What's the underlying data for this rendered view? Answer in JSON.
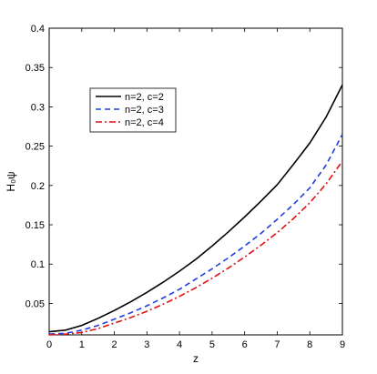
{
  "chart_data": {
    "type": "line",
    "xlabel": "z",
    "ylabel": "H₀ψ",
    "xlim": [
      0,
      9
    ],
    "ylim": [
      0.01,
      0.4
    ],
    "x_ticks": [
      0,
      1,
      2,
      3,
      4,
      5,
      6,
      7,
      8,
      9
    ],
    "y_ticks": [
      0.05,
      0.1,
      0.15,
      0.2,
      0.25,
      0.3,
      0.35,
      0.4
    ],
    "legend_position": "upper-left",
    "grid": false,
    "series": [
      {
        "name": "n=2, c=2",
        "color": "#000000",
        "dash": "solid",
        "x": [
          0,
          0.5,
          1,
          1.5,
          2,
          2.5,
          3,
          3.5,
          4,
          4.5,
          5,
          5.5,
          6,
          6.5,
          7,
          7.5,
          8,
          8.5,
          9
        ],
        "y": [
          0.014,
          0.016,
          0.022,
          0.031,
          0.041,
          0.052,
          0.064,
          0.077,
          0.091,
          0.106,
          0.123,
          0.141,
          0.16,
          0.18,
          0.201,
          0.227,
          0.254,
          0.287,
          0.328
        ]
      },
      {
        "name": "n=2, c=3",
        "color": "#1f3fe0",
        "dash": "dashed",
        "x": [
          0,
          0.5,
          1,
          1.5,
          2,
          2.5,
          3,
          3.5,
          4,
          4.5,
          5,
          5.5,
          6,
          6.5,
          7,
          7.5,
          8,
          8.5,
          9
        ],
        "y": [
          0.011,
          0.012,
          0.016,
          0.022,
          0.03,
          0.038,
          0.047,
          0.057,
          0.068,
          0.081,
          0.094,
          0.108,
          0.123,
          0.139,
          0.157,
          0.176,
          0.197,
          0.226,
          0.265
        ]
      },
      {
        "name": "n=2, c=4",
        "color": "#e01010",
        "dash": "dashdot",
        "x": [
          0,
          0.5,
          1,
          1.5,
          2,
          2.5,
          3,
          3.5,
          4,
          4.5,
          5,
          5.5,
          6,
          6.5,
          7,
          7.5,
          8,
          8.5,
          9
        ],
        "y": [
          0.01,
          0.011,
          0.013,
          0.018,
          0.025,
          0.032,
          0.04,
          0.049,
          0.059,
          0.07,
          0.082,
          0.095,
          0.109,
          0.124,
          0.14,
          0.158,
          0.178,
          0.202,
          0.231
        ]
      }
    ]
  }
}
